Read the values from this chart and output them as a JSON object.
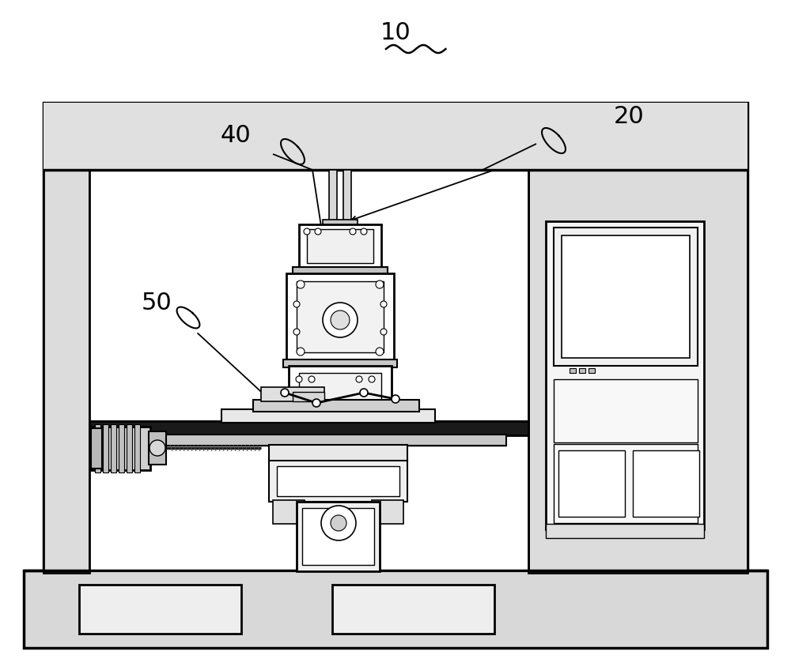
{
  "bg_color": "#ffffff",
  "line_color": "#000000",
  "lw_outer": 2.5,
  "lw_main": 2.0,
  "lw_med": 1.5,
  "lw_thin": 1.0,
  "gray_light": "#e8e8e8",
  "gray_med": "#d0d0d0",
  "gray_dark": "#b0b0b0",
  "gray_fill": "#f0f0f0"
}
